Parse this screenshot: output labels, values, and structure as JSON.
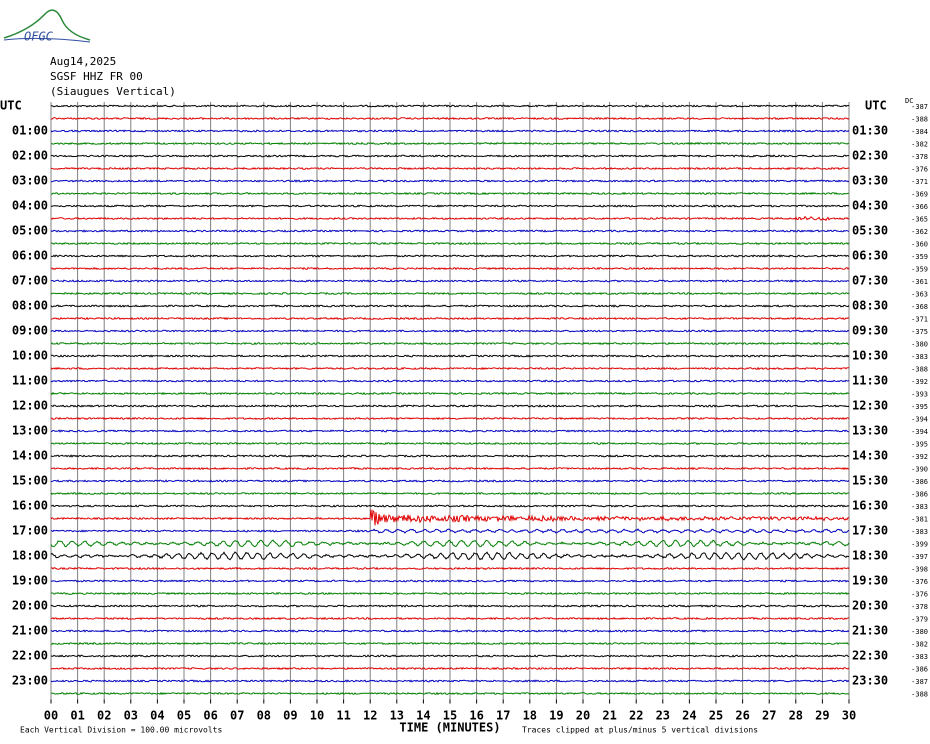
{
  "chart_data": {
    "type": "helicorder",
    "logo": "OFGC",
    "title_lines": [
      "Aug14,2025",
      "SGSF HHZ FR 00",
      "(Siaugues Vertical)"
    ],
    "left_header": "UTC",
    "right_header": "UTC",
    "dc_header": "DC",
    "left_labels": [
      "01:00",
      "02:00",
      "03:00",
      "04:00",
      "05:00",
      "06:00",
      "07:00",
      "08:00",
      "09:00",
      "10:00",
      "11:00",
      "12:00",
      "13:00",
      "14:00",
      "15:00",
      "16:00",
      "17:00",
      "18:00",
      "19:00",
      "20:00",
      "21:00",
      "22:00",
      "23:00"
    ],
    "right_labels": [
      "01:30",
      "02:30",
      "03:30",
      "04:30",
      "05:30",
      "06:30",
      "07:30",
      "08:30",
      "09:30",
      "10:30",
      "11:30",
      "12:30",
      "13:30",
      "14:30",
      "15:30",
      "16:30",
      "17:30",
      "18:30",
      "19:30",
      "20:30",
      "21:30",
      "22:30",
      "23:30"
    ],
    "dc_offsets": [
      -387,
      -388,
      -384,
      -382,
      -378,
      -376,
      -371,
      -369,
      -366,
      -365,
      -362,
      -360,
      -359,
      -359,
      -361,
      -363,
      -368,
      -371,
      -375,
      -380,
      -383,
      -388,
      -392,
      -393,
      -395,
      -394,
      -394,
      -395,
      -392,
      -390,
      -386,
      -386,
      -383,
      -381,
      -383,
      -399,
      -397,
      -398,
      -376,
      -376,
      -378,
      -379,
      -380,
      -382,
      -383,
      -386,
      -387,
      -388
    ],
    "trace_colors": [
      "#000000",
      "#e00000",
      "#0000c0",
      "#008000"
    ],
    "grid": true,
    "xlim": [
      0,
      30
    ],
    "xticks": [
      {
        "value": 0,
        "label": "00"
      },
      {
        "value": 1,
        "label": "01"
      },
      {
        "value": 2,
        "label": "02"
      },
      {
        "value": 3,
        "label": "03"
      },
      {
        "value": 4,
        "label": "04"
      },
      {
        "value": 5,
        "label": "05"
      },
      {
        "value": 6,
        "label": "06"
      },
      {
        "value": 7,
        "label": "07"
      },
      {
        "value": 8,
        "label": "08"
      },
      {
        "value": 9,
        "label": "09"
      },
      10,
      11,
      12,
      13,
      14,
      15,
      16,
      17,
      18,
      19,
      20,
      21,
      22,
      23,
      24,
      25,
      26,
      27,
      28,
      29,
      30
    ],
    "xlabel": "TIME (MINUTES)",
    "footer_left": "Each Vertical Division =  100.00 microvolts",
    "footer_right": "Traces clipped at plus/minus 5 vertical divisions"
  }
}
